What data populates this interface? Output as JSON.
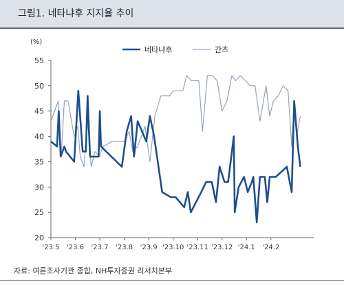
{
  "figure": {
    "title": "그림1. 네타냐후 지지율 추이",
    "source": "자료: 여론조사기관 종합, NH투자증권 리서치본부"
  },
  "chart_data": {
    "type": "line",
    "title": "",
    "xlabel": "",
    "ylabel": "",
    "y_unit": "(%)",
    "ylim": [
      20,
      55
    ],
    "yticks": [
      20,
      25,
      30,
      35,
      40,
      45,
      50,
      55
    ],
    "xlim": [
      0,
      10.75
    ],
    "xticks": [
      {
        "x": 0,
        "label": "'23.5"
      },
      {
        "x": 1,
        "label": "'23.6"
      },
      {
        "x": 2,
        "label": "'23.7"
      },
      {
        "x": 3,
        "label": "'23.8"
      },
      {
        "x": 4,
        "label": "'23.9"
      },
      {
        "x": 5,
        "label": "'23.10"
      },
      {
        "x": 6,
        "label": "'23.11"
      },
      {
        "x": 7,
        "label": "'23.12"
      },
      {
        "x": 8,
        "label": "'24.1"
      },
      {
        "x": 9,
        "label": "'24.2"
      }
    ],
    "legend": "top",
    "grid": false,
    "series": [
      {
        "name": "네타냐후",
        "color": "#1f4e8c",
        "points": [
          [
            0,
            39
          ],
          [
            0.25,
            38
          ],
          [
            0.32,
            45
          ],
          [
            0.4,
            36
          ],
          [
            0.55,
            38
          ],
          [
            0.62,
            37
          ],
          [
            0.95,
            35
          ],
          [
            1.12,
            49
          ],
          [
            1.3,
            37
          ],
          [
            1.43,
            37
          ],
          [
            1.5,
            48
          ],
          [
            1.6,
            36
          ],
          [
            1.95,
            36
          ],
          [
            2.0,
            45
          ],
          [
            2.05,
            38
          ],
          [
            2.9,
            34
          ],
          [
            3.1,
            41
          ],
          [
            3.28,
            44
          ],
          [
            3.4,
            36
          ],
          [
            3.55,
            43
          ],
          [
            3.9,
            39
          ],
          [
            4.05,
            44
          ],
          [
            4.22,
            40
          ],
          [
            4.55,
            29
          ],
          [
            4.9,
            28
          ],
          [
            5.1,
            28
          ],
          [
            5.45,
            26
          ],
          [
            5.6,
            29
          ],
          [
            5.72,
            25
          ],
          [
            6.15,
            29
          ],
          [
            6.35,
            31
          ],
          [
            6.58,
            31
          ],
          [
            6.75,
            27
          ],
          [
            6.9,
            34
          ],
          [
            7.1,
            31
          ],
          [
            7.25,
            31
          ],
          [
            7.48,
            40
          ],
          [
            7.52,
            25
          ],
          [
            7.68,
            30
          ],
          [
            7.9,
            32
          ],
          [
            8.05,
            29
          ],
          [
            8.22,
            31
          ],
          [
            8.28,
            32
          ],
          [
            8.42,
            23
          ],
          [
            8.55,
            32
          ],
          [
            8.75,
            32
          ],
          [
            8.85,
            27
          ],
          [
            8.95,
            32
          ],
          [
            9.2,
            32
          ],
          [
            9.65,
            34
          ],
          [
            9.85,
            29
          ],
          [
            9.95,
            47
          ],
          [
            10.1,
            38
          ],
          [
            10.2,
            34
          ]
        ]
      },
      {
        "name": "간츠",
        "color": "#95a3c0",
        "points": [
          [
            0,
            43
          ],
          [
            0.3,
            47
          ],
          [
            0.42,
            36
          ],
          [
            0.55,
            47
          ],
          [
            0.7,
            47
          ],
          [
            0.95,
            40
          ],
          [
            1.1,
            42
          ],
          [
            1.2,
            36
          ],
          [
            1.35,
            34
          ],
          [
            1.5,
            43
          ],
          [
            1.65,
            34
          ],
          [
            1.8,
            37
          ],
          [
            2.0,
            36
          ],
          [
            2.05,
            37
          ],
          [
            2.15,
            38
          ],
          [
            2.5,
            39
          ],
          [
            2.85,
            39
          ],
          [
            3.0,
            39
          ],
          [
            3.2,
            41
          ],
          [
            3.35,
            37
          ],
          [
            3.55,
            38
          ],
          [
            3.85,
            42
          ],
          [
            4.05,
            35
          ],
          [
            4.25,
            44
          ],
          [
            4.5,
            48
          ],
          [
            4.85,
            48
          ],
          [
            5.0,
            49
          ],
          [
            5.2,
            49
          ],
          [
            5.4,
            49
          ],
          [
            5.55,
            52
          ],
          [
            5.75,
            51
          ],
          [
            6.05,
            51
          ],
          [
            6.2,
            41
          ],
          [
            6.4,
            52
          ],
          [
            6.6,
            52
          ],
          [
            6.8,
            51
          ],
          [
            7.0,
            45
          ],
          [
            7.2,
            47
          ],
          [
            7.4,
            52
          ],
          [
            7.55,
            51
          ],
          [
            7.75,
            52
          ],
          [
            7.95,
            51
          ],
          [
            8.15,
            50
          ],
          [
            8.35,
            50
          ],
          [
            8.55,
            43
          ],
          [
            8.8,
            50
          ],
          [
            8.95,
            44
          ],
          [
            9.1,
            47
          ],
          [
            9.3,
            48
          ],
          [
            9.5,
            50
          ],
          [
            9.7,
            49
          ],
          [
            9.85,
            38
          ],
          [
            9.95,
            47
          ],
          [
            10.05,
            40
          ],
          [
            10.2,
            44
          ]
        ]
      }
    ]
  }
}
